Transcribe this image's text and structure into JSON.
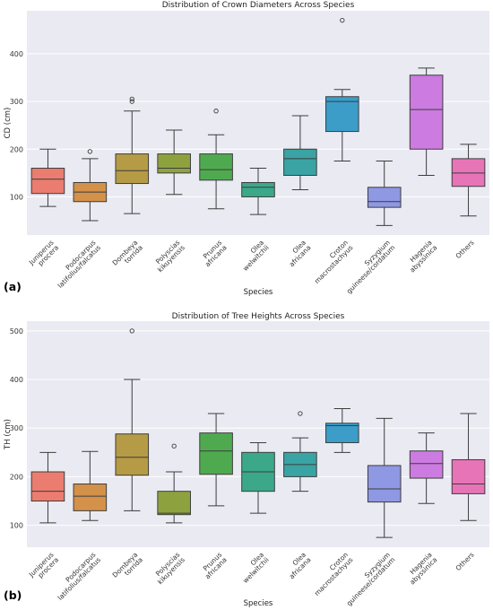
{
  "chart_data": [
    {
      "type": "box",
      "panel_label": "(a)",
      "title": "Distribution of Crown Diameters Across Species",
      "xlabel": "Species",
      "ylabel": "CD (cm)",
      "ylim": [
        20,
        490
      ],
      "yticks": [
        100,
        200,
        300,
        400
      ],
      "grid": true,
      "categories": [
        [
          "Juniperus",
          "procera"
        ],
        [
          "Podocarpus",
          "latifolius/falcatus"
        ],
        [
          "Dombeya",
          "torrida"
        ],
        [
          "Polyscias",
          "kikuyensis"
        ],
        [
          "Prunus",
          "africana"
        ],
        [
          "Olea",
          "welwitchii"
        ],
        [
          "Olea",
          "africana"
        ],
        [
          "Croton",
          "macrostachyus"
        ],
        [
          "Syzygium",
          "guineese/cordatum"
        ],
        [
          "Hagenia",
          "abyssinica"
        ],
        [
          "Others"
        ]
      ],
      "boxes": [
        {
          "min": 80,
          "q1": 107,
          "median": 137,
          "q3": 160,
          "max": 200,
          "outliers": [],
          "color": "#ea7d70"
        },
        {
          "min": 50,
          "q1": 90,
          "median": 110,
          "q3": 130,
          "max": 180,
          "outliers": [
            195
          ],
          "color": "#d3914a"
        },
        {
          "min": 65,
          "q1": 128,
          "median": 155,
          "q3": 190,
          "max": 280,
          "outliers": [
            300,
            305
          ],
          "color": "#b59b45"
        },
        {
          "min": 105,
          "q1": 150,
          "median": 160,
          "q3": 190,
          "max": 240,
          "outliers": [],
          "color": "#8da23f"
        },
        {
          "min": 75,
          "q1": 135,
          "median": 157,
          "q3": 190,
          "max": 230,
          "outliers": [
            280
          ],
          "color": "#4faa4f"
        },
        {
          "min": 63,
          "q1": 100,
          "median": 120,
          "q3": 130,
          "max": 160,
          "outliers": [],
          "color": "#3ba88a"
        },
        {
          "min": 115,
          "q1": 145,
          "median": 180,
          "q3": 200,
          "max": 270,
          "outliers": [],
          "color": "#3aa3a3"
        },
        {
          "min": 175,
          "q1": 237,
          "median": 300,
          "q3": 310,
          "max": 325,
          "outliers": [
            470
          ],
          "color": "#3b9dc8"
        },
        {
          "min": 40,
          "q1": 78,
          "median": 90,
          "q3": 120,
          "max": 175,
          "outliers": [],
          "color": "#8f98e2"
        },
        {
          "min": 145,
          "q1": 200,
          "median": 283,
          "q3": 355,
          "max": 370,
          "outliers": [],
          "color": "#cc7be0"
        },
        {
          "min": 60,
          "q1": 122,
          "median": 150,
          "q3": 180,
          "max": 210,
          "outliers": [],
          "color": "#e874b8"
        }
      ]
    },
    {
      "type": "box",
      "panel_label": "(b)",
      "title": "Distribution of Tree Heights Across Species",
      "xlabel": "Species",
      "ylabel": "TH (cm)",
      "ylim": [
        55,
        520
      ],
      "yticks": [
        100,
        200,
        300,
        400,
        500
      ],
      "grid": true,
      "categories": [
        [
          "Juniperus",
          "procera"
        ],
        [
          "Podocarpus",
          "latifolius/falcatus"
        ],
        [
          "Dombeya",
          "torrida"
        ],
        [
          "Polyscias",
          "kikuyensis"
        ],
        [
          "Prunus",
          "africana"
        ],
        [
          "Olea",
          "welwitchii"
        ],
        [
          "Olea",
          "africana"
        ],
        [
          "Croton",
          "macrostachyus"
        ],
        [
          "Syzygium",
          "guineese/cordatum"
        ],
        [
          "Hagenia",
          "abyssinica"
        ],
        [
          "Others"
        ]
      ],
      "boxes": [
        {
          "min": 105,
          "q1": 150,
          "median": 170,
          "q3": 210,
          "max": 250,
          "outliers": [],
          "color": "#ea7d70"
        },
        {
          "min": 110,
          "q1": 130,
          "median": 160,
          "q3": 185,
          "max": 252,
          "outliers": [],
          "color": "#d3914a"
        },
        {
          "min": 130,
          "q1": 203,
          "median": 240,
          "q3": 288,
          "max": 400,
          "outliers": [
            500
          ],
          "color": "#b59b45"
        },
        {
          "min": 105,
          "q1": 122,
          "median": 125,
          "q3": 170,
          "max": 210,
          "outliers": [
            263
          ],
          "color": "#8da23f"
        },
        {
          "min": 140,
          "q1": 205,
          "median": 253,
          "q3": 290,
          "max": 330,
          "outliers": [],
          "color": "#4faa4f"
        },
        {
          "min": 125,
          "q1": 170,
          "median": 210,
          "q3": 250,
          "max": 270,
          "outliers": [],
          "color": "#3ba88a"
        },
        {
          "min": 170,
          "q1": 200,
          "median": 225,
          "q3": 250,
          "max": 280,
          "outliers": [
            330
          ],
          "color": "#3aa3a3"
        },
        {
          "min": 250,
          "q1": 270,
          "median": 305,
          "q3": 310,
          "max": 340,
          "outliers": [],
          "color": "#3b9dc8"
        },
        {
          "min": 75,
          "q1": 148,
          "median": 175,
          "q3": 223,
          "max": 320,
          "outliers": [],
          "color": "#8f98e2"
        },
        {
          "min": 145,
          "q1": 197,
          "median": 227,
          "q3": 253,
          "max": 290,
          "outliers": [],
          "color": "#cc7be0"
        },
        {
          "min": 110,
          "q1": 165,
          "median": 185,
          "q3": 235,
          "max": 330,
          "outliers": [],
          "color": "#e874b8"
        }
      ]
    }
  ],
  "style": {
    "plot_background": "#eaeaf2",
    "grid_color": "#ffffff",
    "line_color": "#3d3d3d"
  }
}
